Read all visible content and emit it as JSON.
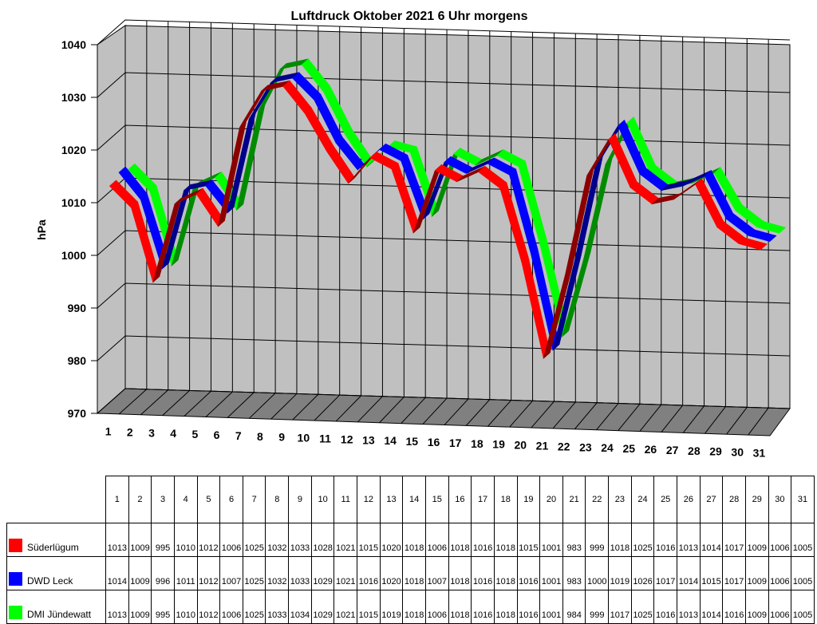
{
  "chart_data": {
    "type": "line",
    "title": "Luftdruck Oktober 2021 6 Uhr morgens",
    "ylabel": "hPa",
    "xlabel": "",
    "ylim": [
      970,
      1040
    ],
    "yticks": [
      "970",
      "980",
      "990",
      "1000",
      "1010",
      "1020",
      "1030",
      "1040"
    ],
    "categories": [
      "1",
      "2",
      "3",
      "4",
      "5",
      "6",
      "7",
      "8",
      "9",
      "10",
      "11",
      "12",
      "13",
      "14",
      "15",
      "16",
      "17",
      "18",
      "19",
      "20",
      "21",
      "22",
      "23",
      "24",
      "25",
      "26",
      "27",
      "28",
      "29",
      "30",
      "31"
    ],
    "three_d": true,
    "grid": true,
    "series": [
      {
        "name": "Süderlügum",
        "color": "#ff0000",
        "values": [
          1013,
          1009,
          995,
          1010,
          1012,
          1006,
          1025,
          1032,
          1033,
          1028,
          1021,
          1015,
          1020,
          1018,
          1006,
          1018,
          1016,
          1018,
          1015,
          1001,
          983,
          999,
          1018,
          1025,
          1016,
          1013,
          1014,
          1017,
          1009,
          1006,
          1005
        ]
      },
      {
        "name": "DWD Leck",
        "color": "#0000ff",
        "values": [
          1014,
          1009,
          996,
          1011,
          1012,
          1007,
          1025,
          1032,
          1033,
          1029,
          1021,
          1016,
          1020,
          1018,
          1007,
          1018,
          1016,
          1018,
          1016,
          1001,
          983,
          1000,
          1019,
          1026,
          1017,
          1014,
          1015,
          1017,
          1009,
          1006,
          1005
        ]
      },
      {
        "name": "DMI Jündewatt",
        "color": "#00ff00",
        "values": [
          1013,
          1009,
          995,
          1010,
          1012,
          1006,
          1025,
          1033,
          1034,
          1029,
          1021,
          1015,
          1019,
          1018,
          1006,
          1018,
          1016,
          1018,
          1016,
          1001,
          984,
          999,
          1017,
          1025,
          1016,
          1013,
          1014,
          1016,
          1009,
          1006,
          1005
        ]
      }
    ]
  }
}
